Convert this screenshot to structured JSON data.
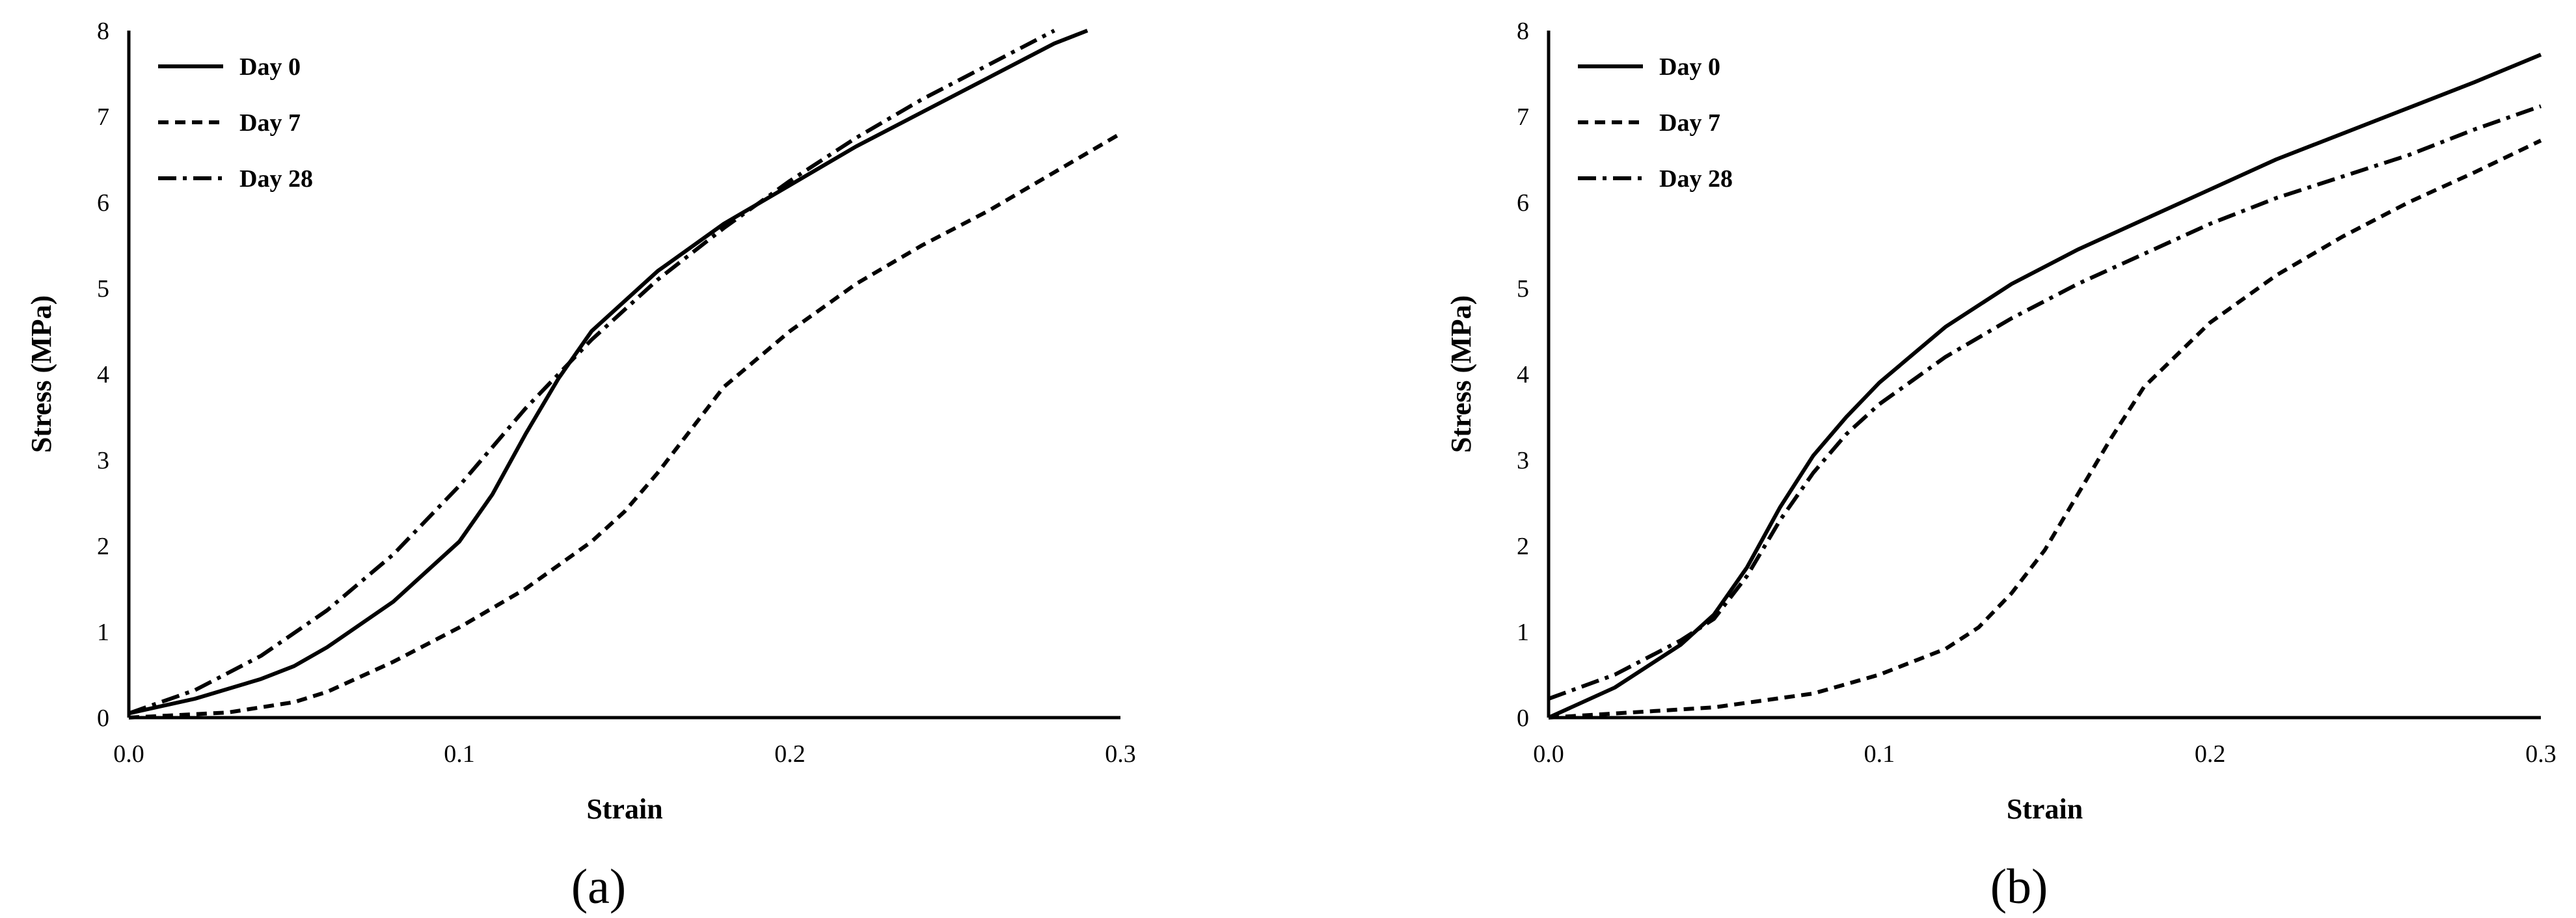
{
  "panel_labels": [
    "(a)",
    "(b)"
  ],
  "chart_data": [
    {
      "type": "line",
      "panel": "(a)",
      "xlabel": "Strain",
      "ylabel": "Stress (MPa)",
      "xlim": [
        0,
        0.3
      ],
      "ylim": [
        0,
        8
      ],
      "x_ticks": [
        "0.0",
        "0.1",
        "0.2",
        "0.3"
      ],
      "y_ticks": [
        "0",
        "1",
        "2",
        "3",
        "4",
        "5",
        "6",
        "7",
        "8"
      ],
      "legend_position": "top-left",
      "series": [
        {
          "name": "Day 0",
          "style": "solid",
          "points": [
            [
              0,
              0.05
            ],
            [
              0.02,
              0.22
            ],
            [
              0.04,
              0.45
            ],
            [
              0.05,
              0.6
            ],
            [
              0.06,
              0.82
            ],
            [
              0.08,
              1.35
            ],
            [
              0.1,
              2.05
            ],
            [
              0.11,
              2.6
            ],
            [
              0.12,
              3.3
            ],
            [
              0.13,
              3.95
            ],
            [
              0.14,
              4.5
            ],
            [
              0.16,
              5.2
            ],
            [
              0.18,
              5.75
            ],
            [
              0.2,
              6.2
            ],
            [
              0.22,
              6.65
            ],
            [
              0.24,
              7.05
            ],
            [
              0.26,
              7.45
            ],
            [
              0.28,
              7.85
            ],
            [
              0.29,
              8.0
            ]
          ]
        },
        {
          "name": "Day 7",
          "style": "dashed",
          "points": [
            [
              0,
              0
            ],
            [
              0.03,
              0.06
            ],
            [
              0.05,
              0.18
            ],
            [
              0.06,
              0.3
            ],
            [
              0.08,
              0.65
            ],
            [
              0.1,
              1.05
            ],
            [
              0.12,
              1.5
            ],
            [
              0.14,
              2.05
            ],
            [
              0.15,
              2.4
            ],
            [
              0.16,
              2.85
            ],
            [
              0.17,
              3.35
            ],
            [
              0.18,
              3.85
            ],
            [
              0.2,
              4.5
            ],
            [
              0.22,
              5.05
            ],
            [
              0.24,
              5.5
            ],
            [
              0.26,
              5.9
            ],
            [
              0.28,
              6.35
            ],
            [
              0.3,
              6.8
            ]
          ]
        },
        {
          "name": "Day 28",
          "style": "dash-dot",
          "points": [
            [
              0,
              0.05
            ],
            [
              0.02,
              0.32
            ],
            [
              0.04,
              0.72
            ],
            [
              0.06,
              1.25
            ],
            [
              0.08,
              1.9
            ],
            [
              0.1,
              2.7
            ],
            [
              0.12,
              3.6
            ],
            [
              0.14,
              4.4
            ],
            [
              0.16,
              5.1
            ],
            [
              0.18,
              5.7
            ],
            [
              0.2,
              6.25
            ],
            [
              0.22,
              6.75
            ],
            [
              0.24,
              7.2
            ],
            [
              0.26,
              7.6
            ],
            [
              0.28,
              8.0
            ]
          ]
        }
      ]
    },
    {
      "type": "line",
      "panel": "(b)",
      "xlabel": "Strain",
      "ylabel": "Stress (MPa)",
      "xlim": [
        0,
        0.3
      ],
      "ylim": [
        0,
        8
      ],
      "x_ticks": [
        "0.0",
        "0.1",
        "0.2",
        "0.3"
      ],
      "y_ticks": [
        "0",
        "1",
        "2",
        "3",
        "4",
        "5",
        "6",
        "7",
        "8"
      ],
      "legend_position": "top-left",
      "series": [
        {
          "name": "Day 0",
          "style": "solid",
          "points": [
            [
              0,
              0.0
            ],
            [
              0.02,
              0.35
            ],
            [
              0.04,
              0.85
            ],
            [
              0.05,
              1.2
            ],
            [
              0.06,
              1.75
            ],
            [
              0.07,
              2.45
            ],
            [
              0.08,
              3.05
            ],
            [
              0.09,
              3.5
            ],
            [
              0.1,
              3.9
            ],
            [
              0.12,
              4.55
            ],
            [
              0.14,
              5.05
            ],
            [
              0.16,
              5.45
            ],
            [
              0.18,
              5.8
            ],
            [
              0.2,
              6.15
            ],
            [
              0.22,
              6.5
            ],
            [
              0.24,
              6.8
            ],
            [
              0.26,
              7.1
            ],
            [
              0.28,
              7.4
            ],
            [
              0.3,
              7.72
            ]
          ]
        },
        {
          "name": "Day 7",
          "style": "dashed",
          "points": [
            [
              0,
              0.0
            ],
            [
              0.05,
              0.12
            ],
            [
              0.08,
              0.28
            ],
            [
              0.1,
              0.5
            ],
            [
              0.12,
              0.8
            ],
            [
              0.13,
              1.05
            ],
            [
              0.14,
              1.45
            ],
            [
              0.15,
              1.95
            ],
            [
              0.16,
              2.6
            ],
            [
              0.17,
              3.25
            ],
            [
              0.18,
              3.85
            ],
            [
              0.2,
              4.6
            ],
            [
              0.22,
              5.15
            ],
            [
              0.24,
              5.6
            ],
            [
              0.26,
              6.0
            ],
            [
              0.28,
              6.35
            ],
            [
              0.3,
              6.72
            ]
          ]
        },
        {
          "name": "Day 28",
          "style": "dash-dot",
          "points": [
            [
              0,
              0.22
            ],
            [
              0.02,
              0.5
            ],
            [
              0.04,
              0.9
            ],
            [
              0.05,
              1.15
            ],
            [
              0.06,
              1.65
            ],
            [
              0.07,
              2.3
            ],
            [
              0.08,
              2.85
            ],
            [
              0.09,
              3.3
            ],
            [
              0.1,
              3.65
            ],
            [
              0.12,
              4.2
            ],
            [
              0.14,
              4.65
            ],
            [
              0.16,
              5.05
            ],
            [
              0.18,
              5.4
            ],
            [
              0.2,
              5.75
            ],
            [
              0.22,
              6.05
            ],
            [
              0.24,
              6.3
            ],
            [
              0.26,
              6.55
            ],
            [
              0.28,
              6.85
            ],
            [
              0.3,
              7.12
            ]
          ]
        }
      ]
    }
  ]
}
